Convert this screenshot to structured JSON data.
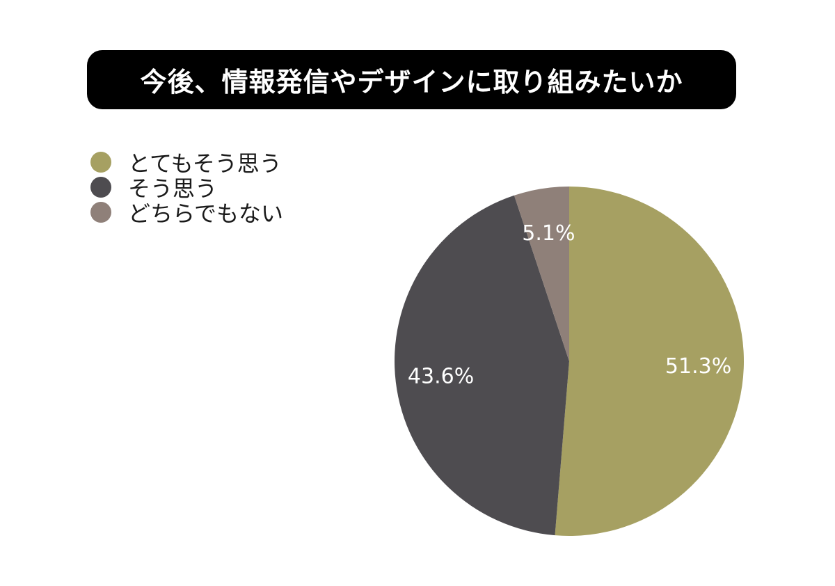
{
  "chart_data": {
    "type": "pie",
    "title": "今後、情報発信やデザインに取り組みたいか",
    "legend_position": "top-left",
    "slices": [
      {
        "label": "とてもそう思う",
        "value": 51.3,
        "value_label": "51.3%",
        "color": "#a6a062"
      },
      {
        "label": "そう思う",
        "value": 43.6,
        "value_label": "43.6%",
        "color": "#4e4c50"
      },
      {
        "label": "どちらでもない",
        "value": 5.1,
        "value_label": "5.1%",
        "color": "#8f8079"
      }
    ]
  }
}
